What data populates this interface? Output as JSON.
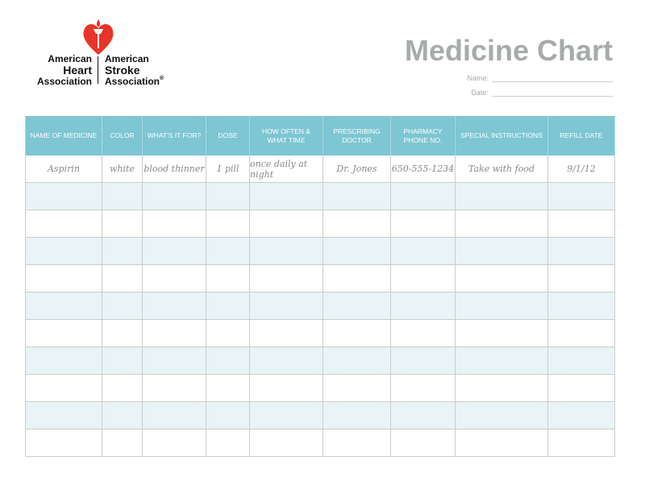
{
  "logo": {
    "left": [
      "American",
      "Heart",
      "Association"
    ],
    "right": [
      "American",
      "Stroke",
      "Association"
    ],
    "registered": "®"
  },
  "header": {
    "title": "Medicine Chart",
    "fields": [
      "Name:",
      "Date:"
    ]
  },
  "table": {
    "headers": [
      "NAME OF MEDICINE",
      "COLOR",
      "WHAT'S IT FOR?",
      "DOSE",
      "HOW OFTEN &\nWHAT TIME",
      "PRESCRIBING\nDOCTOR",
      "PHARMACY\nPHONE NO.",
      "SPECIAL INSTRUCTIONS",
      "REFILL DATE"
    ],
    "rows": [
      [
        "Aspirin",
        "white",
        "blood thinner",
        "1 pill",
        "once daily at night",
        "Dr. Jones",
        "650-555-1234",
        "Take with food",
        "9/1/12"
      ]
    ]
  }
}
